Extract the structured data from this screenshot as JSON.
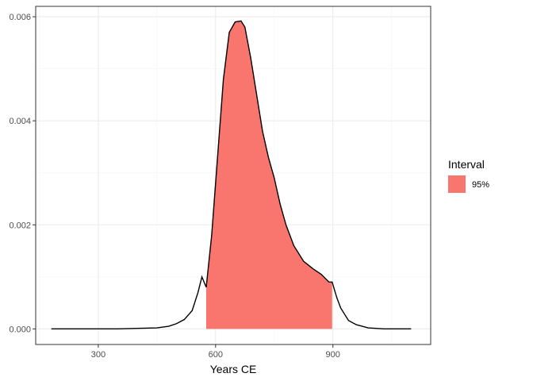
{
  "chart_data": {
    "type": "area",
    "xlabel": "Years CE",
    "ylabel": "",
    "xlim": [
      140,
      1150
    ],
    "ylim": [
      -0.0003,
      0.0062
    ],
    "x_ticks": [
      300,
      600,
      900
    ],
    "x_tick_labels": [
      "300",
      "600",
      "900"
    ],
    "y_ticks": [
      0,
      0.002,
      0.004,
      0.006
    ],
    "y_tick_labels": [
      "0.000",
      "0.002",
      "0.004",
      "0.006"
    ],
    "grid": true,
    "legend": {
      "title": "Interval",
      "position": "right",
      "entries": [
        {
          "label": "95%",
          "color": "#F8766D"
        }
      ]
    },
    "interval": {
      "label": "95%",
      "from": 576,
      "to": 898
    },
    "density": {
      "x": [
        180,
        200,
        250,
        300,
        350,
        400,
        450,
        480,
        500,
        520,
        540,
        555,
        565,
        576,
        590,
        605,
        620,
        635,
        650,
        665,
        675,
        690,
        705,
        720,
        735,
        750,
        765,
        780,
        800,
        825,
        850,
        870,
        890,
        898,
        910,
        920,
        940,
        960,
        990,
        1030,
        1070,
        1100
      ],
      "y": [
        0.0,
        0.0,
        0.0,
        0.0,
        0.0,
        1e-05,
        2e-05,
        5e-05,
        0.0001,
        0.00018,
        0.00035,
        0.0007,
        0.001,
        0.0008,
        0.0018,
        0.0033,
        0.0048,
        0.0057,
        0.0059,
        0.00592,
        0.0058,
        0.0052,
        0.0045,
        0.0038,
        0.0033,
        0.0029,
        0.0024,
        0.002,
        0.0016,
        0.0013,
        0.00115,
        0.00105,
        0.0009,
        0.0009,
        0.0006,
        0.0004,
        0.00016,
        8e-05,
        2e-05,
        0.0,
        0.0,
        0.0
      ]
    },
    "colors": {
      "fill": "#F8766D",
      "line": "#000000",
      "panel_border": "#333333",
      "grid_major": "#EBEBEB",
      "grid_minor": "#F5F5F5"
    }
  }
}
